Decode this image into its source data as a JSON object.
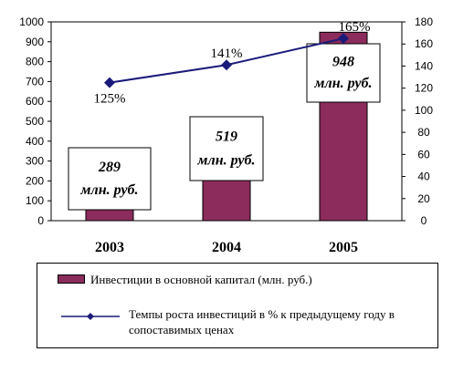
{
  "chart_data": {
    "type": "bar+line",
    "categories": [
      "2003",
      "2004",
      "2005"
    ],
    "series": [
      {
        "name": "Инвестиции в основной капитал (млн. руб.)",
        "type": "bar",
        "axis": "left",
        "values": [
          289,
          519,
          948
        ],
        "data_labels": [
          "289 млн. руб.",
          "519 млн. руб.",
          "948 млн. руб."
        ],
        "color": "#8b2c5c"
      },
      {
        "name": "Темпы роста инвестиций в % к предыдущему году в сопоставимых ценах",
        "type": "line",
        "axis": "right",
        "values": [
          125,
          141,
          165
        ],
        "data_labels": [
          "125%",
          "141%",
          "165%"
        ],
        "color": "#1a1a7a"
      }
    ],
    "y_left": {
      "min": 0,
      "max": 1000,
      "step": 100,
      "ticks": [
        "0",
        "100",
        "200",
        "300",
        "400",
        "500",
        "600",
        "700",
        "800",
        "900",
        "1000"
      ]
    },
    "y_right": {
      "min": 0,
      "max": 180,
      "step": 20,
      "ticks": [
        "0",
        "20",
        "40",
        "60",
        "80",
        "100",
        "120",
        "140",
        "160",
        "180"
      ]
    },
    "legend_position": "bottom",
    "grid": false
  }
}
